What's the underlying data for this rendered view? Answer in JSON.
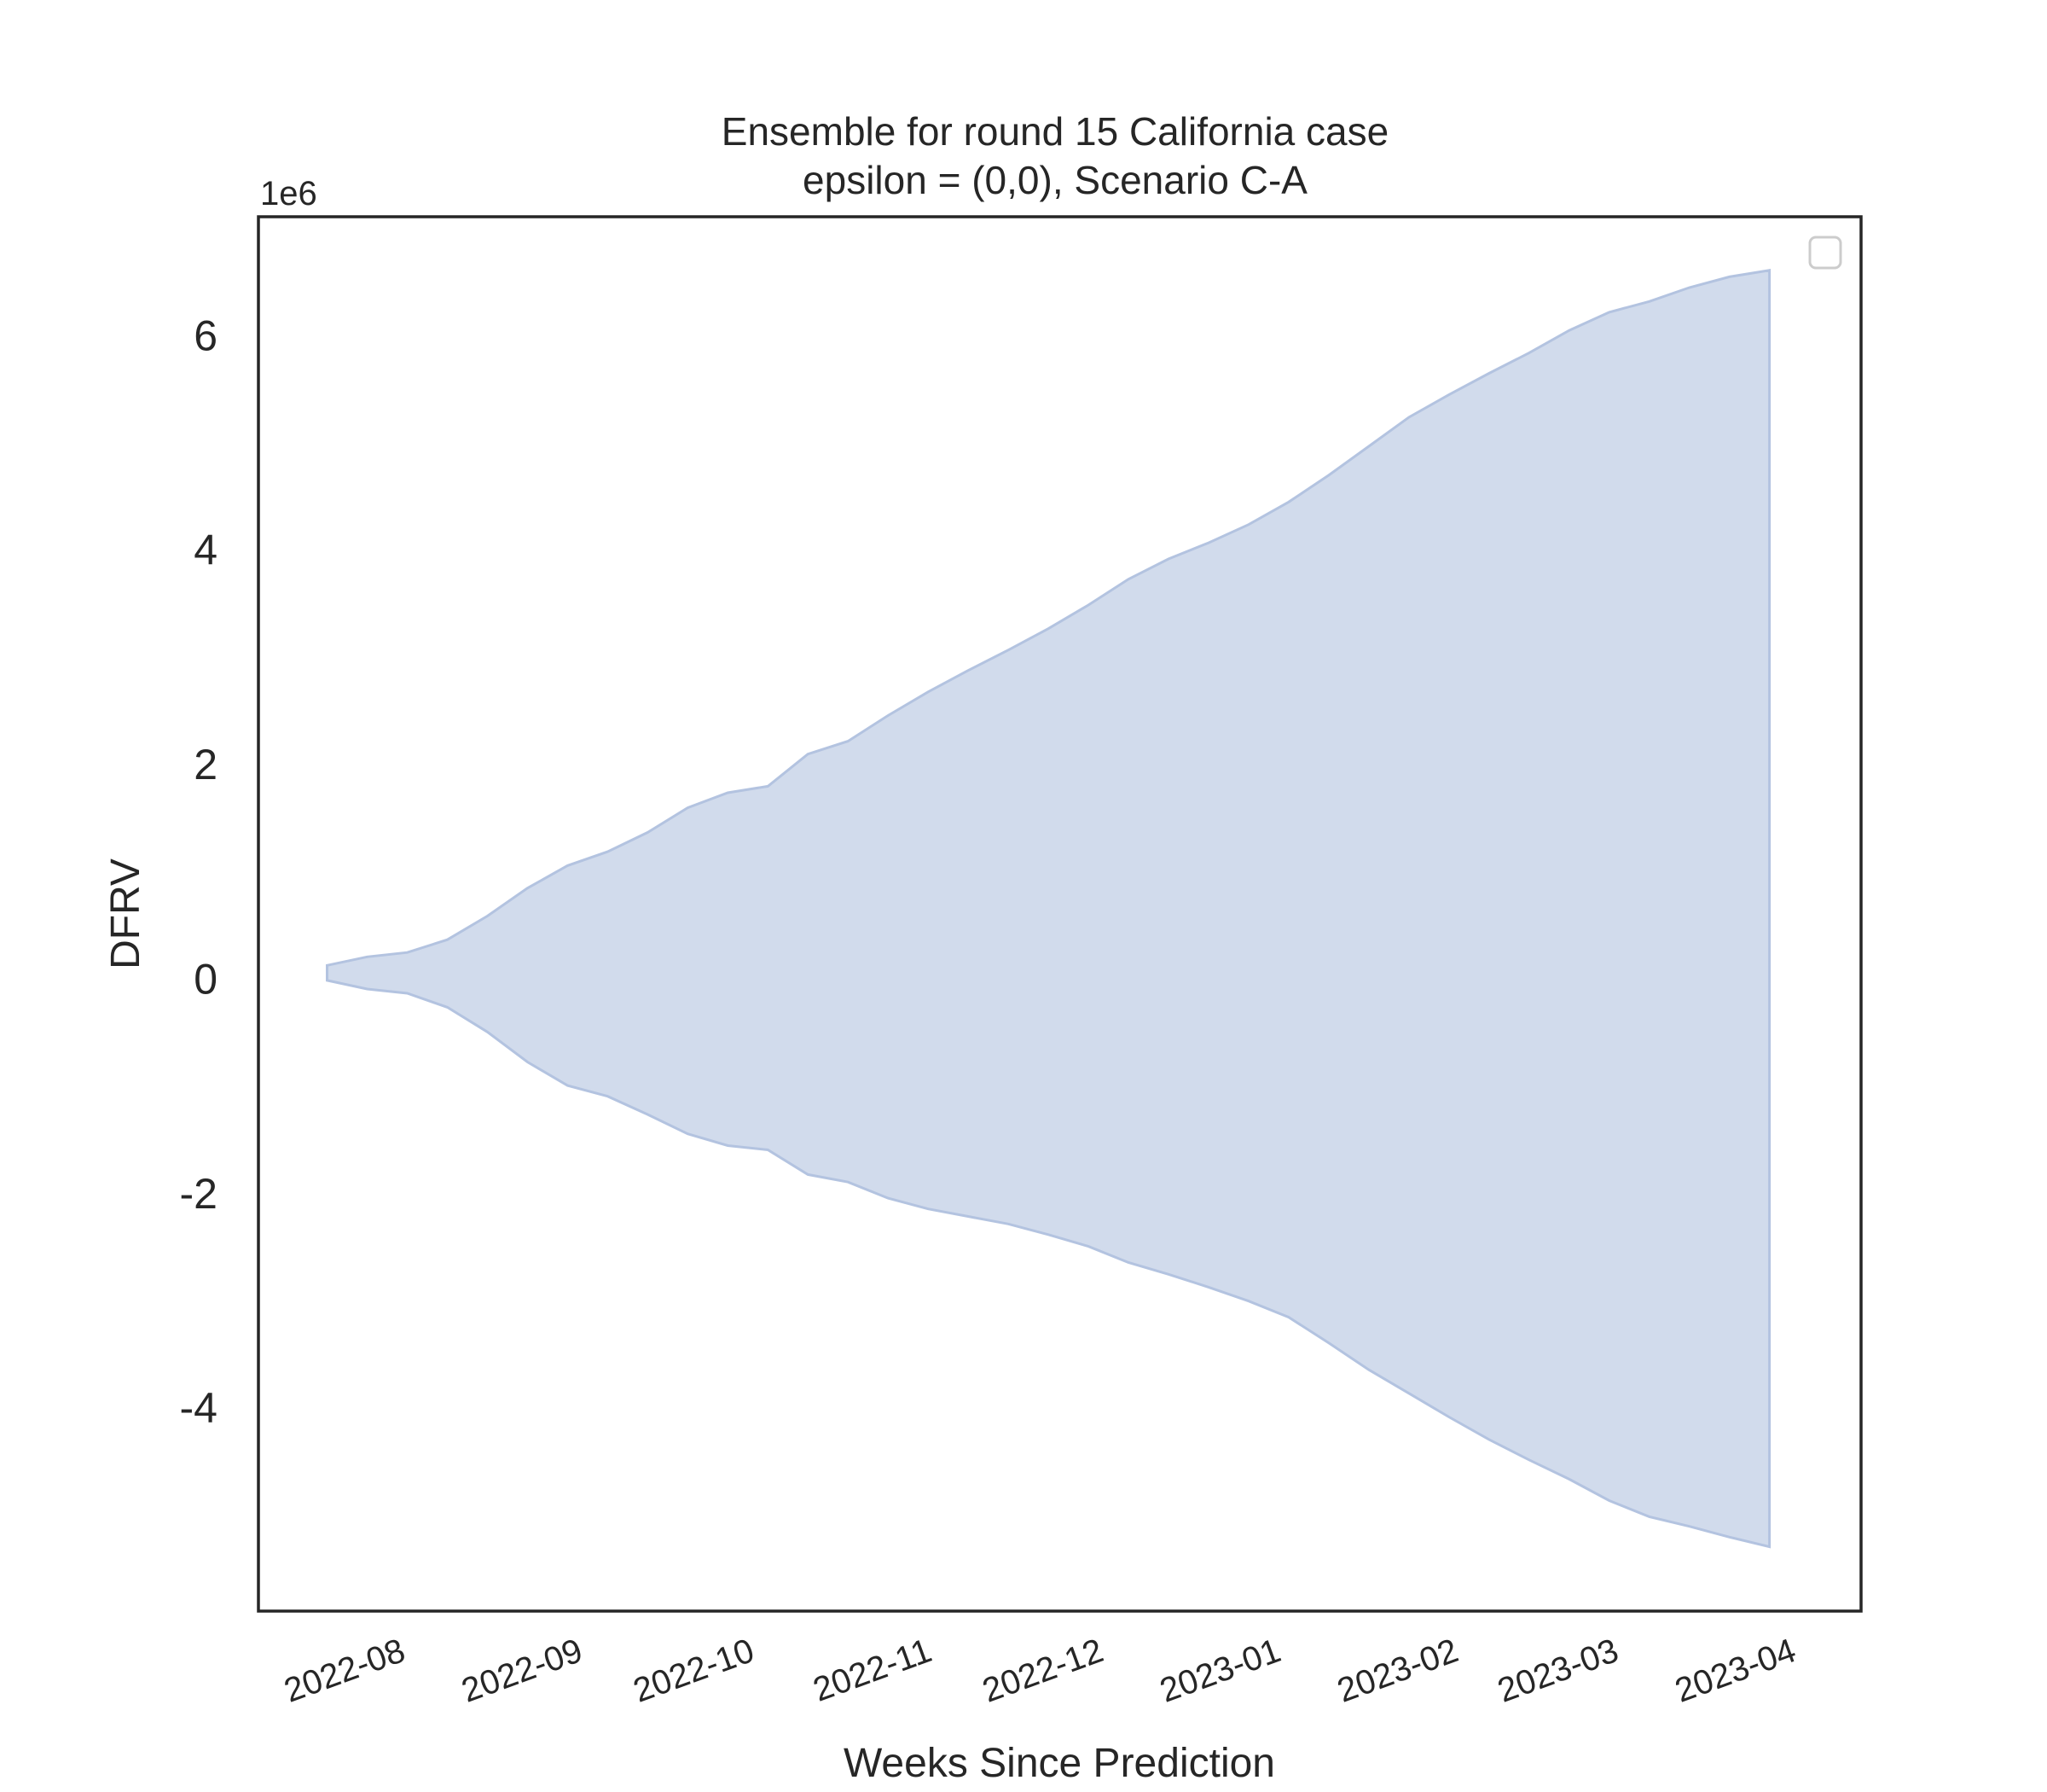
{
  "chart_data": {
    "type": "area",
    "title": "Ensemble for round 15 California case",
    "subtitle": "epsilon = (0,0), Scenario C-A",
    "xlabel": "Weeks Since Prediction",
    "ylabel": "DFRV",
    "y_offset_label": "1e6",
    "y_multiplier": 1000000,
    "ylim": [
      -5.9,
      7.1
    ],
    "xlim": [
      "2022-07-06",
      "2023-04-12"
    ],
    "x_ticks": [
      "2022-08-01",
      "2022-09-01",
      "2022-10-01",
      "2022-11-01",
      "2022-12-01",
      "2023-01-01",
      "2023-02-01",
      "2023-03-01",
      "2023-04-01"
    ],
    "x_tick_labels": [
      "2022-08",
      "2022-09",
      "2022-10",
      "2022-11",
      "2022-12",
      "2023-01",
      "2023-02",
      "2023-03",
      "2023-04"
    ],
    "y_ticks": [
      -4,
      -2,
      0,
      2,
      4,
      6
    ],
    "y_tick_labels": [
      "-4",
      "-2",
      "0",
      "2",
      "4",
      "6"
    ],
    "grid": false,
    "legend": {
      "placement": "top-right",
      "entries": []
    },
    "fill_color": "#c6d2e7",
    "fill_opacity": 0.8,
    "series": [
      {
        "x": [
          "2022-07-18",
          "2022-07-25",
          "2022-08-01",
          "2022-08-08",
          "2022-08-15",
          "2022-08-22",
          "2022-08-29",
          "2022-09-05",
          "2022-09-12",
          "2022-09-19",
          "2022-09-26",
          "2022-10-03",
          "2022-10-10",
          "2022-10-17",
          "2022-10-24",
          "2022-10-31",
          "2022-11-07",
          "2022-11-14",
          "2022-11-21",
          "2022-11-28",
          "2022-12-05",
          "2022-12-12",
          "2022-12-19",
          "2022-12-26",
          "2023-01-02",
          "2023-01-09",
          "2023-01-16",
          "2023-01-23",
          "2023-01-30",
          "2023-02-06",
          "2023-02-13",
          "2023-02-20",
          "2023-02-27",
          "2023-03-06",
          "2023-03-13",
          "2023-03-20",
          "2023-03-27"
        ],
        "lower": [
          -0.02,
          -0.1,
          -0.14,
          -0.27,
          -0.5,
          -0.78,
          -1.0,
          -1.1,
          -1.27,
          -1.45,
          -1.56,
          -1.6,
          -1.83,
          -1.9,
          -2.05,
          -2.15,
          -2.22,
          -2.29,
          -2.39,
          -2.5,
          -2.65,
          -2.76,
          -2.88,
          -3.01,
          -3.16,
          -3.4,
          -3.65,
          -3.87,
          -4.09,
          -4.3,
          -4.49,
          -4.67,
          -4.87,
          -5.02,
          -5.11,
          -5.21,
          -5.3
        ],
        "upper": [
          0.12,
          0.2,
          0.24,
          0.36,
          0.58,
          0.84,
          1.05,
          1.18,
          1.36,
          1.59,
          1.73,
          1.79,
          2.09,
          2.21,
          2.45,
          2.67,
          2.87,
          3.06,
          3.26,
          3.48,
          3.72,
          3.91,
          4.06,
          4.23,
          4.44,
          4.69,
          4.96,
          5.23,
          5.44,
          5.64,
          5.83,
          6.04,
          6.21,
          6.31,
          6.44,
          6.54,
          6.6
        ]
      }
    ]
  }
}
